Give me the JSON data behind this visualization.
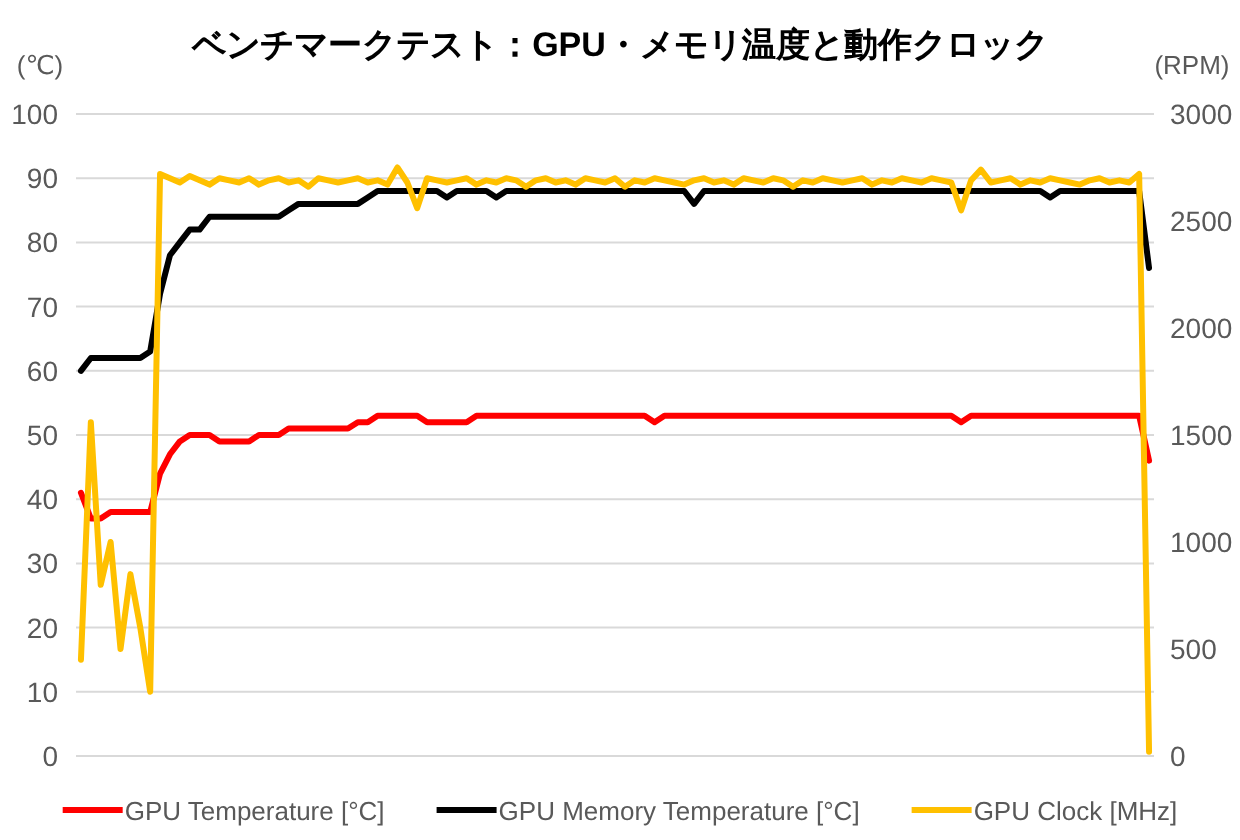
{
  "chart_data": {
    "type": "line",
    "title": "ベンチマークテスト：GPU・メモリ温度と動作クロック",
    "ylabel": "(℃)",
    "y2label": "(RPM)",
    "categories": [
      null,
      null,
      null,
      null,
      null,
      null,
      null,
      null,
      null,
      null,
      null,
      null,
      null,
      null,
      null,
      null,
      null,
      null,
      null,
      null,
      null,
      null,
      null,
      null,
      null,
      null,
      null,
      null,
      null,
      null,
      null,
      null,
      null,
      null,
      null,
      null,
      null,
      null,
      null,
      null,
      null,
      null,
      null,
      null,
      null,
      null,
      null,
      null,
      null,
      null,
      null,
      null,
      null,
      null,
      null,
      null,
      null,
      null,
      null,
      null,
      null,
      null,
      null,
      null,
      null,
      null,
      null,
      null,
      null,
      null,
      null,
      null,
      null,
      null,
      null,
      null,
      null,
      null,
      null,
      null,
      null,
      null,
      null,
      null,
      null,
      null,
      null,
      null,
      null,
      null,
      null,
      null,
      null,
      null,
      null,
      null,
      null,
      null,
      null,
      null,
      null,
      null,
      null,
      null,
      null,
      null,
      null,
      null,
      null
    ],
    "series": [
      {
        "name": "GPU Temperature [°C]",
        "color": "#ff0000",
        "values": [
          41,
          37,
          37,
          38,
          38,
          38,
          38,
          38,
          44,
          47,
          49,
          50,
          50,
          50,
          49,
          49,
          49,
          49,
          50,
          50,
          50,
          51,
          51,
          51,
          51,
          51,
          51,
          51,
          52,
          52,
          53,
          53,
          53,
          53,
          53,
          52,
          52,
          52,
          52,
          52,
          53,
          53,
          53,
          53,
          53,
          53,
          53,
          53,
          53,
          53,
          53,
          53,
          53,
          53,
          53,
          53,
          53,
          53,
          52,
          53,
          53,
          53,
          53,
          53,
          53,
          53,
          53,
          53,
          53,
          53,
          53,
          53,
          53,
          53,
          53,
          53,
          53,
          53,
          53,
          53,
          53,
          53,
          53,
          53,
          53,
          53,
          53,
          53,
          53,
          52,
          53,
          53,
          53,
          53,
          53,
          53,
          53,
          53,
          53,
          53,
          53,
          53,
          53,
          53,
          53,
          53,
          53,
          53,
          46
        ]
      },
      {
        "name": "GPU Memory Temperature [°C]",
        "color": "#000000",
        "values": [
          60,
          62,
          62,
          62,
          62,
          62,
          62,
          63,
          72,
          78,
          80,
          82,
          82,
          84,
          84,
          84,
          84,
          84,
          84,
          84,
          84,
          85,
          86,
          86,
          86,
          86,
          86,
          86,
          86,
          87,
          88,
          88,
          88,
          88,
          88,
          88,
          88,
          87,
          88,
          88,
          88,
          88,
          87,
          88,
          88,
          88,
          88,
          88,
          88,
          88,
          88,
          88,
          88,
          88,
          88,
          88,
          88,
          88,
          88,
          88,
          88,
          88,
          86,
          88,
          88,
          88,
          88,
          88,
          88,
          88,
          88,
          88,
          88,
          88,
          88,
          88,
          88,
          88,
          88,
          88,
          88,
          88,
          88,
          88,
          88,
          88,
          88,
          88,
          88,
          88,
          88,
          88,
          88,
          88,
          88,
          88,
          88,
          88,
          87,
          88,
          88,
          88,
          88,
          88,
          88,
          88,
          88,
          88,
          76
        ]
      },
      {
        "name": "GPU Clock [MHz]",
        "color": "#ffc000",
        "axis": "y2",
        "values": [
          450,
          1560,
          800,
          1000,
          500,
          850,
          600,
          300,
          2720,
          2700,
          2680,
          2710,
          2690,
          2670,
          2700,
          2690,
          2680,
          2700,
          2670,
          2690,
          2700,
          2680,
          2690,
          2660,
          2700,
          2690,
          2680,
          2690,
          2700,
          2680,
          2690,
          2670,
          2750,
          2680,
          2560,
          2700,
          2690,
          2680,
          2690,
          2700,
          2670,
          2690,
          2680,
          2700,
          2690,
          2660,
          2690,
          2700,
          2680,
          2690,
          2670,
          2700,
          2690,
          2680,
          2700,
          2660,
          2690,
          2680,
          2700,
          2690,
          2680,
          2670,
          2690,
          2700,
          2680,
          2690,
          2670,
          2700,
          2690,
          2680,
          2700,
          2690,
          2660,
          2690,
          2680,
          2700,
          2690,
          2680,
          2690,
          2700,
          2670,
          2690,
          2680,
          2700,
          2690,
          2680,
          2700,
          2690,
          2680,
          2550,
          2690,
          2740,
          2680,
          2690,
          2700,
          2670,
          2690,
          2680,
          2700,
          2690,
          2680,
          2670,
          2690,
          2700,
          2680,
          2690,
          2680,
          2720,
          20
        ]
      }
    ],
    "ylim": [
      0,
      100
    ],
    "yticks": [
      0,
      10,
      20,
      30,
      40,
      50,
      60,
      70,
      80,
      90,
      100
    ],
    "y2lim": [
      0,
      3000
    ],
    "y2ticks": [
      0,
      500,
      1000,
      1500,
      2000,
      2500,
      3000
    ],
    "grid": "y",
    "legend": "bottom",
    "marker": "none",
    "line_style": "solid"
  }
}
